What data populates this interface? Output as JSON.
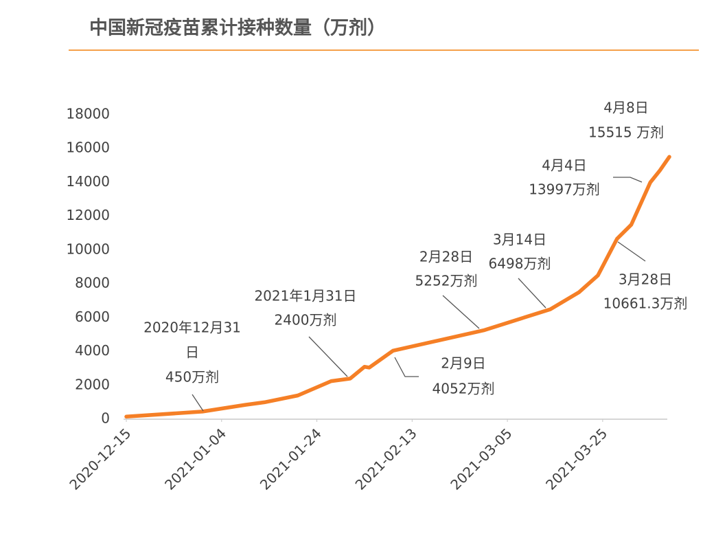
{
  "chart_data": {
    "type": "line",
    "title": "中国新冠疫苗累计接种数量（万剂）",
    "x": [
      "2020-12-15",
      "2020-12-31",
      "2021-01-09",
      "2021-01-13",
      "2021-01-20",
      "2021-01-27",
      "2021-01-31",
      "2021-02-03",
      "2021-02-04",
      "2021-02-09",
      "2021-02-28",
      "2021-03-14",
      "2021-03-20",
      "2021-03-24",
      "2021-03-28",
      "2021-03-31",
      "2021-04-04",
      "2021-04-06",
      "2021-04-08"
    ],
    "values": [
      150,
      450,
      850,
      1000,
      1400,
      2250,
      2400,
      3100,
      3050,
      4052,
      5252,
      6498,
      7500,
      8500,
      10661.3,
      11500,
      13997,
      14700,
      15515
    ],
    "color": "#f57f26",
    "xlim": [
      "2020-12-15",
      "2021-04-08"
    ],
    "xticks": [
      "2020-12-15",
      "2021-01-04",
      "2021-01-24",
      "2021-02-13",
      "2021-03-05",
      "2021-03-25"
    ],
    "ylim": [
      0,
      18000
    ],
    "yticks": [
      0,
      2000,
      4000,
      6000,
      8000,
      10000,
      12000,
      14000,
      16000,
      18000
    ],
    "annotations": [
      {
        "lines": [
          "2020年12月31",
          "日",
          "450万剂"
        ]
      },
      {
        "lines": [
          "2021年1月31日",
          "2400万剂"
        ]
      },
      {
        "lines": [
          "2月9日",
          "4052万剂"
        ]
      },
      {
        "lines": [
          "2月28日",
          "5252万剂"
        ]
      },
      {
        "lines": [
          "3月14日",
          "6498万剂"
        ]
      },
      {
        "lines": [
          "3月28日",
          "10661.3万剂"
        ]
      },
      {
        "lines": [
          "4月4日",
          "13997万剂"
        ]
      },
      {
        "lines": [
          "4月8日",
          "15515 万剂"
        ]
      }
    ]
  }
}
